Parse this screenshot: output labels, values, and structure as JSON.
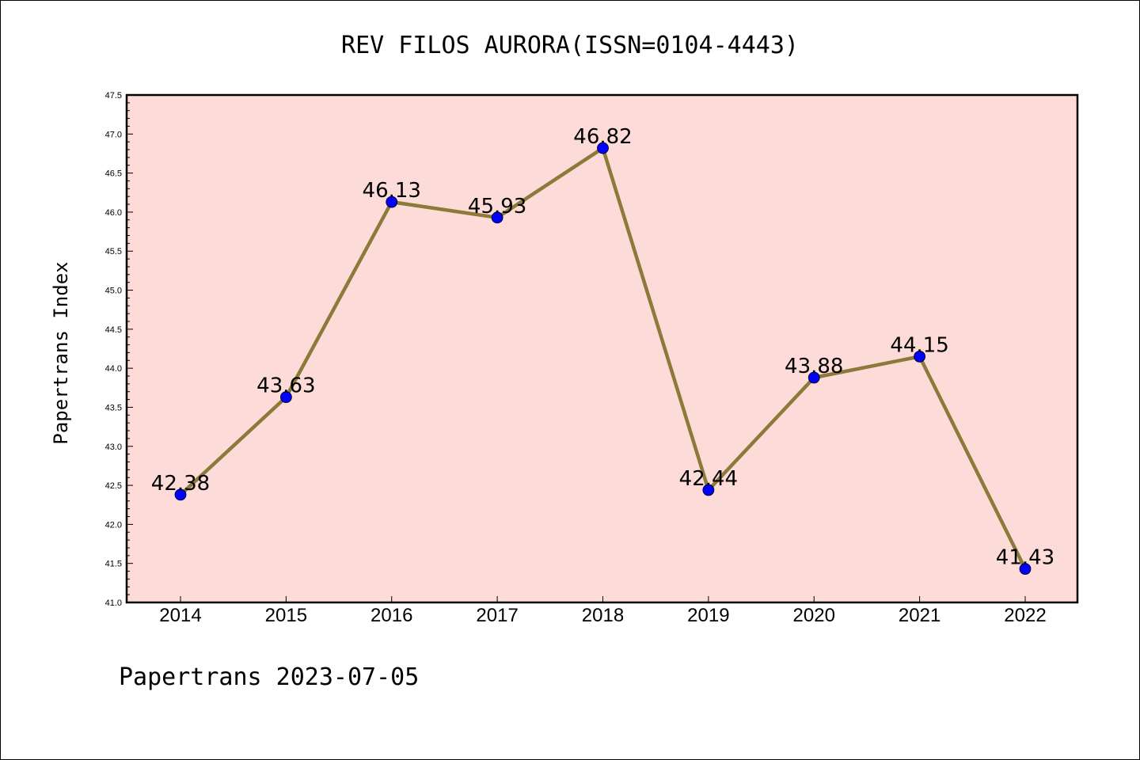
{
  "chart_data": {
    "type": "line",
    "title": "REV FILOS AURORA(ISSN=0104-4443)",
    "xlabel": "",
    "ylabel": "Papertrans Index",
    "categories": [
      "2014",
      "2015",
      "2016",
      "2017",
      "2018",
      "2019",
      "2020",
      "2021",
      "2022"
    ],
    "values": [
      42.38,
      43.63,
      46.13,
      45.93,
      46.82,
      42.44,
      43.88,
      44.15,
      41.43
    ],
    "data_labels": [
      "42.38",
      "43.63",
      "46.13",
      "45.93",
      "46.82",
      "42.44",
      "43.88",
      "44.15",
      "41.43"
    ],
    "ylim": [
      41.0,
      47.5
    ],
    "yticks": [
      "41.0",
      "41.5",
      "42.0",
      "42.5",
      "43.0",
      "43.5",
      "44.0",
      "44.5",
      "45.0",
      "45.5",
      "46.0",
      "46.5",
      "47.0",
      "47.5"
    ],
    "grid": false,
    "colors": {
      "plot_background": "#fddbd8",
      "line": "#8b7a3a",
      "marker": "#0000ff"
    }
  },
  "footer": "Papertrans 2023-07-05"
}
